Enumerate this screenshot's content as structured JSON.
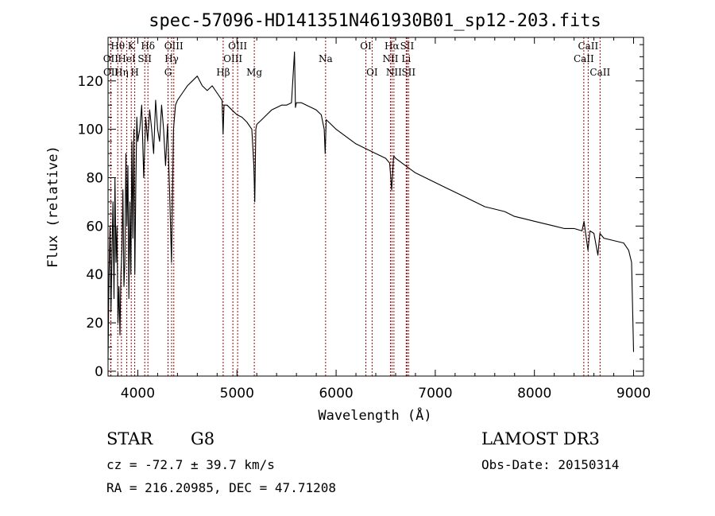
{
  "chart_data": {
    "type": "line",
    "title": "spec-57096-HD141351N461930B01_sp12-203.fits",
    "xlabel": "Wavelength (Å)",
    "ylabel": "Flux (relative)",
    "xlim": [
      3700,
      9100
    ],
    "ylim": [
      -2,
      138
    ],
    "xticks": [
      4000,
      5000,
      6000,
      7000,
      8000,
      9000
    ],
    "yticks": [
      0,
      20,
      40,
      60,
      80,
      100,
      120
    ],
    "grid": false,
    "line_color": "#000000",
    "marker_color": "#a00000",
    "series": [
      {
        "x": [
          3700,
          3710,
          3720,
          3730,
          3740,
          3750,
          3760,
          3770,
          3780,
          3790,
          3800,
          3810,
          3820,
          3830,
          3840,
          3850,
          3860,
          3870,
          3880,
          3890,
          3900,
          3910,
          3920,
          3930,
          3940,
          3950,
          3960,
          3970,
          3980,
          3990,
          4000,
          4020,
          4040,
          4060,
          4080,
          4100,
          4120,
          4140,
          4160,
          4180,
          4200,
          4220,
          4240,
          4260,
          4280,
          4300,
          4320,
          4340,
          4360,
          4380,
          4400,
          4450,
          4500,
          4550,
          4600,
          4650,
          4700,
          4750,
          4800,
          4850,
          4860,
          4870,
          4900,
          4950,
          5000,
          5050,
          5100,
          5150,
          5170,
          5180,
          5190,
          5200,
          5250,
          5300,
          5350,
          5400,
          5450,
          5500,
          5550,
          5580,
          5590,
          5600,
          5650,
          5700,
          5750,
          5800,
          5850,
          5880,
          5890,
          5900,
          5950,
          6000,
          6100,
          6200,
          6300,
          6400,
          6500,
          6540,
          6560,
          6580,
          6600,
          6700,
          6800,
          6900,
          7000,
          7100,
          7200,
          7300,
          7400,
          7500,
          7600,
          7700,
          7800,
          7900,
          8000,
          8100,
          8200,
          8300,
          8400,
          8480,
          8500,
          8540,
          8560,
          8600,
          8640,
          8660,
          8700,
          8800,
          8900,
          8950,
          8980,
          9000
        ],
        "values": [
          5,
          40,
          60,
          25,
          50,
          70,
          30,
          80,
          45,
          60,
          20,
          35,
          15,
          40,
          50,
          75,
          35,
          45,
          90,
          60,
          85,
          30,
          70,
          40,
          95,
          55,
          100,
          40,
          75,
          105,
          95,
          100,
          110,
          80,
          105,
          95,
          108,
          100,
          90,
          112,
          100,
          95,
          110,
          100,
          85,
          102,
          75,
          45,
          100,
          110,
          112,
          115,
          118,
          120,
          122,
          118,
          116,
          118,
          115,
          112,
          98,
          110,
          110,
          108,
          106,
          105,
          103,
          100,
          85,
          70,
          100,
          102,
          104,
          106,
          108,
          109,
          110,
          110,
          111,
          132,
          109,
          111,
          111,
          110,
          109,
          108,
          106,
          100,
          90,
          104,
          102,
          100,
          97,
          94,
          92,
          90,
          88,
          86,
          75,
          89,
          88,
          85,
          82,
          80,
          78,
          76,
          74,
          72,
          70,
          68,
          67,
          66,
          64,
          63,
          62,
          61,
          60,
          59,
          59,
          58,
          62,
          50,
          58,
          57,
          48,
          57,
          55,
          54,
          53,
          50,
          45,
          8
        ]
      }
    ],
    "line_markers": [
      {
        "label": "Hθ",
        "x": 3798,
        "row": 0
      },
      {
        "label": "OII",
        "x": 3727,
        "row": 1
      },
      {
        "label": "OII",
        "x": 3729,
        "row": 2
      },
      {
        "label": "K",
        "x": 3934,
        "row": 0
      },
      {
        "label": "HeI",
        "x": 3889,
        "row": 1
      },
      {
        "label": "Hη",
        "x": 3835,
        "row": 2
      },
      {
        "label": "Hδ",
        "x": 4102,
        "row": 0
      },
      {
        "label": "SII",
        "x": 4070,
        "row": 1
      },
      {
        "label": "H",
        "x": 3969,
        "row": 2
      },
      {
        "label": "OIII",
        "x": 4363,
        "row": 0
      },
      {
        "label": "Hγ",
        "x": 4341,
        "row": 1
      },
      {
        "label": "G",
        "x": 4305,
        "row": 2
      },
      {
        "label": "Hβ",
        "x": 4861,
        "row": 2
      },
      {
        "label": "OIII",
        "x": 4959,
        "row": 1
      },
      {
        "label": "OIII",
        "x": 5007,
        "row": 0
      },
      {
        "label": "Mg",
        "x": 5175,
        "row": 2
      },
      {
        "label": "Na",
        "x": 5894,
        "row": 1
      },
      {
        "label": "OI",
        "x": 6300,
        "row": 0
      },
      {
        "label": "OI",
        "x": 6363,
        "row": 2
      },
      {
        "label": "Hα",
        "x": 6563,
        "row": 0
      },
      {
        "label": "NII",
        "x": 6548,
        "row": 1
      },
      {
        "label": "NII",
        "x": 6583,
        "row": 2
      },
      {
        "label": "SII",
        "x": 6716,
        "row": 0
      },
      {
        "label": "Li",
        "x": 6707,
        "row": 1
      },
      {
        "label": "SII",
        "x": 6731,
        "row": 2
      },
      {
        "label": "CaII",
        "x": 8542,
        "row": 0
      },
      {
        "label": "CaII",
        "x": 8498,
        "row": 1
      },
      {
        "label": "CaII",
        "x": 8662,
        "row": 2
      }
    ]
  },
  "info": {
    "object_class": "STAR",
    "subclass": "G8",
    "survey": "LAMOST DR3",
    "redshift": "cz = -72.7 ± 39.7 km/s",
    "obs_date": "Obs-Date: 20150314",
    "coords": "RA = 216.20985, DEC =  47.71208"
  }
}
